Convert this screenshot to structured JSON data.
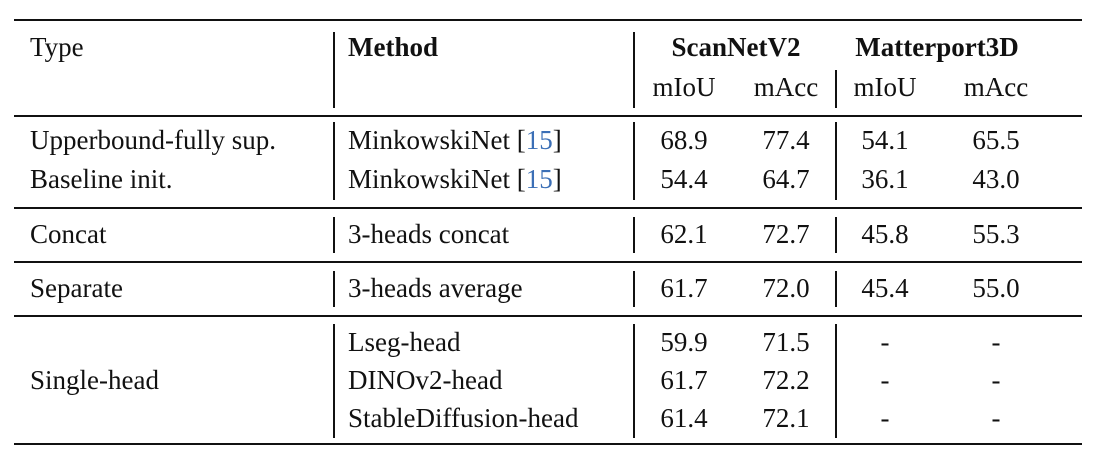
{
  "header": {
    "type": "Type",
    "method": "Method",
    "dataset1": "ScanNetV2",
    "dataset2": "Matterport3D",
    "metric1": "mIoU",
    "metric2": "mAcc",
    "metric3": "mIoU",
    "metric4": "mAcc"
  },
  "rows": [
    {
      "type": "Upperbound-fully sup.",
      "method": "MinkowskiNet [",
      "cite": "15",
      "close": "]",
      "s_miou": "68.9",
      "s_macc": "77.4",
      "m_miou": "54.1",
      "m_macc": "65.5"
    },
    {
      "type": "Baseline init.",
      "method": "MinkowskiNet [",
      "cite": "15",
      "close": "]",
      "s_miou": "54.4",
      "s_macc": "64.7",
      "m_miou": "36.1",
      "m_macc": "43.0"
    },
    {
      "type": "Concat",
      "method": "3-heads concat",
      "s_miou": "62.1",
      "s_macc": "72.7",
      "m_miou": "45.8",
      "m_macc": "55.3"
    },
    {
      "type": "Separate",
      "method": "3-heads average",
      "s_miou": "61.7",
      "s_macc": "72.0",
      "m_miou": "45.4",
      "m_macc": "55.0"
    },
    {
      "type": "Single-head",
      "method": "Lseg-head",
      "s_miou": "59.9",
      "s_macc": "71.5",
      "m_miou": "-",
      "m_macc": "-"
    },
    {
      "method": "DINOv2-head",
      "s_miou": "61.7",
      "s_macc": "72.2",
      "m_miou": "-",
      "m_macc": "-"
    },
    {
      "method": "StableDiffusion-head",
      "s_miou": "61.4",
      "s_macc": "72.1",
      "m_miou": "-",
      "m_macc": "-"
    }
  ]
}
